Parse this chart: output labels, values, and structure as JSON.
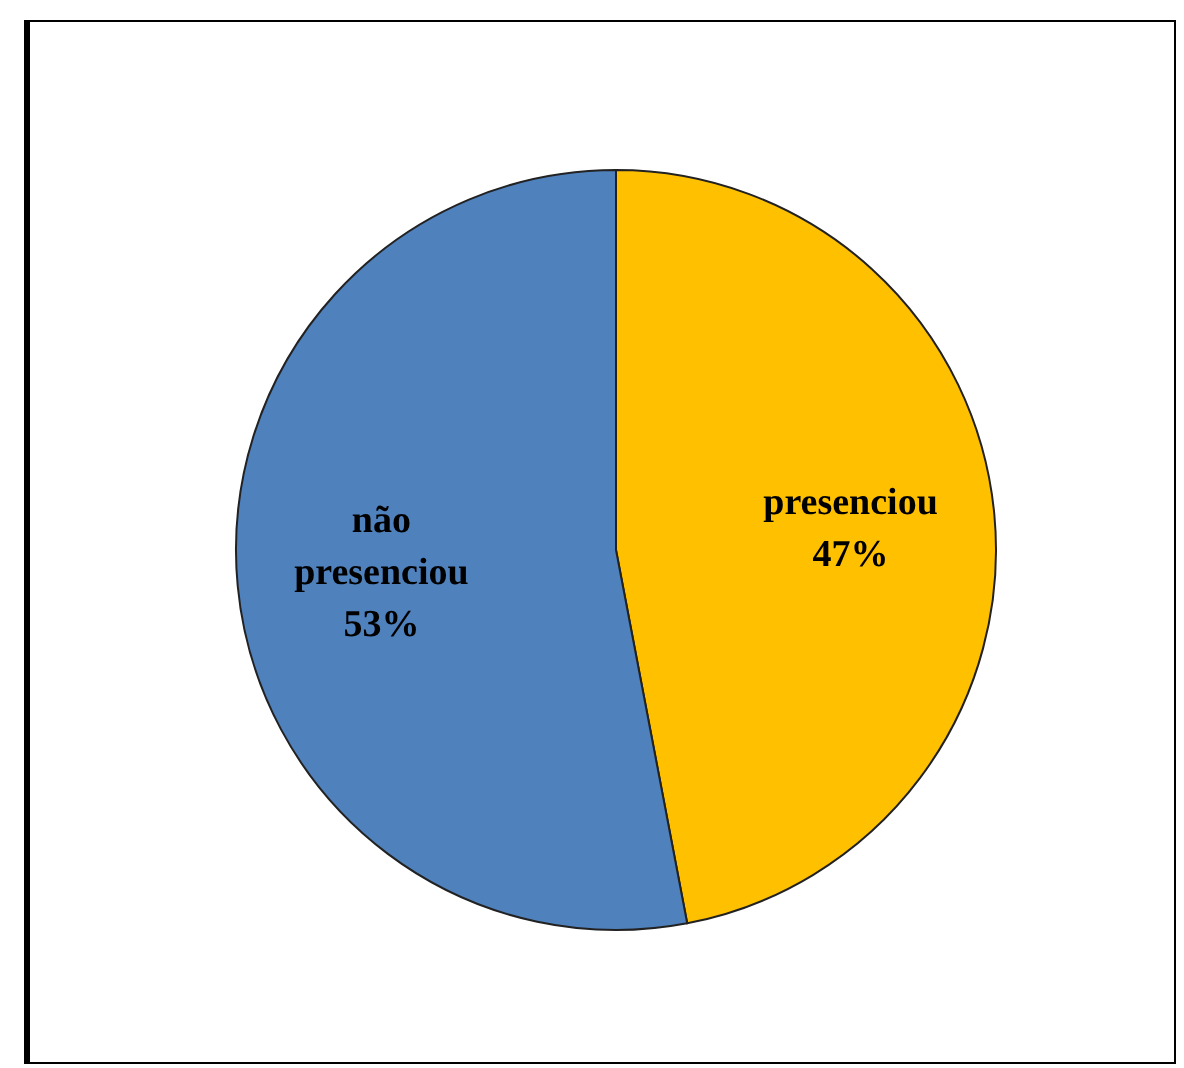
{
  "chart_data": {
    "type": "pie",
    "categories": [
      "presenciou",
      "não presenciou"
    ],
    "values": [
      47,
      53
    ],
    "colors": [
      "#ffc000",
      "#4f81bd"
    ],
    "value_labels": [
      "47%",
      "53%"
    ]
  }
}
